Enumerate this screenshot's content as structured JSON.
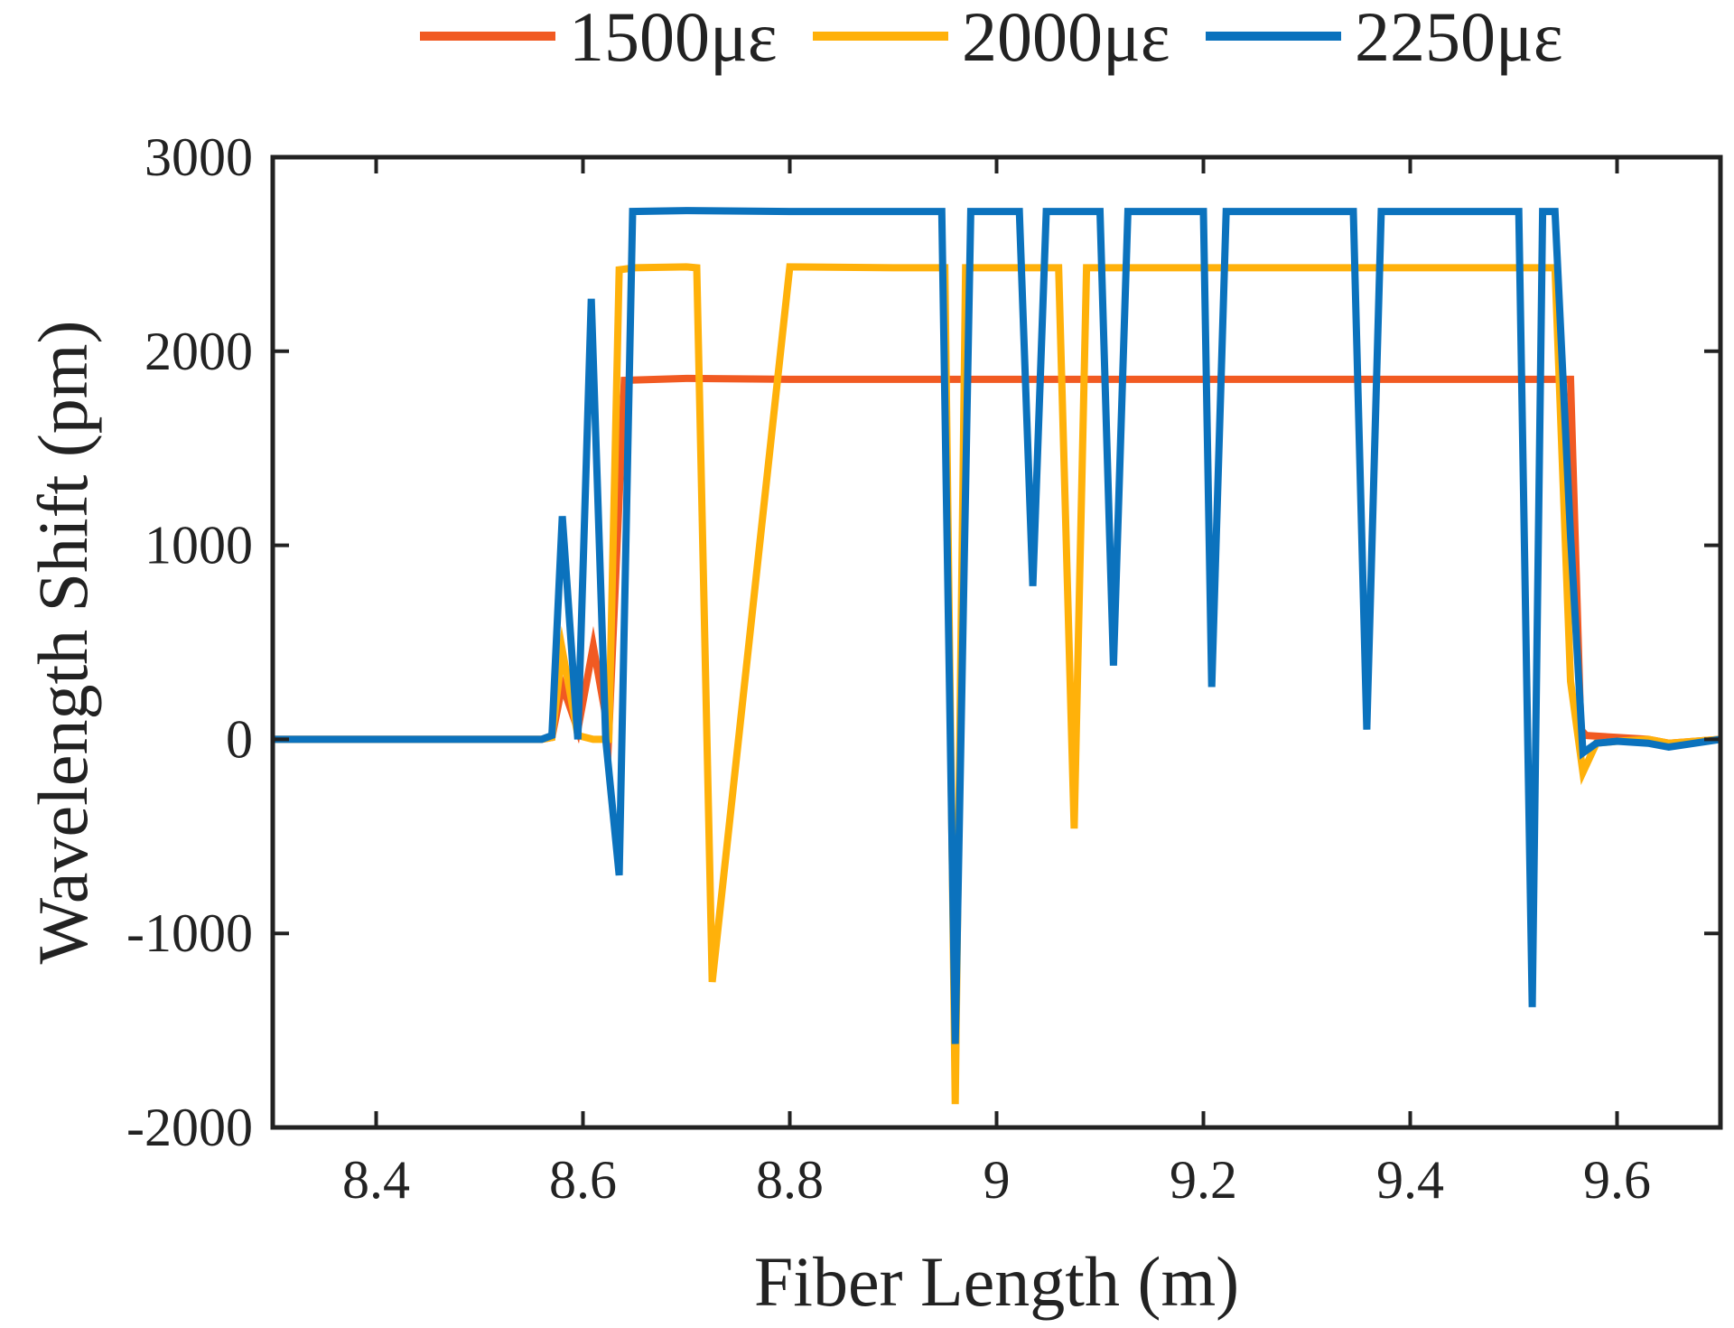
{
  "chart_data": {
    "type": "line",
    "title": "",
    "xlabel": "Fiber Length (m)",
    "ylabel": "Wavelength Shift (pm)",
    "xlim": [
      8.3,
      9.7
    ],
    "ylim": [
      -2000,
      3000
    ],
    "xticks": [
      8.4,
      8.6,
      8.8,
      9,
      9.2,
      9.4,
      9.6
    ],
    "xtick_labels": [
      "8.4",
      "8.6",
      "8.8",
      "9",
      "9.2",
      "9.4",
      "9.6"
    ],
    "yticks": [
      -2000,
      -1000,
      0,
      1000,
      2000,
      3000
    ],
    "ytick_labels": [
      "-2000",
      "-1000",
      "0",
      "1000",
      "2000",
      "3000"
    ],
    "grid": false,
    "legend_position": "top, outside plot, horizontal",
    "series": [
      {
        "name": "1500με",
        "color": "#F15A22",
        "x": [
          8.3,
          8.4,
          8.5,
          8.56,
          8.57,
          8.58,
          8.595,
          8.61,
          8.625,
          8.64,
          8.7,
          8.8,
          8.9,
          9.0,
          9.1,
          9.2,
          9.3,
          9.4,
          9.5,
          9.555,
          9.565,
          9.57,
          9.6,
          9.63,
          9.65,
          9.7
        ],
        "y": [
          0,
          0,
          0,
          0,
          10,
          280,
          50,
          480,
          30,
          1850,
          1860,
          1855,
          1855,
          1855,
          1855,
          1855,
          1855,
          1855,
          1855,
          1855,
          50,
          20,
          10,
          0,
          -20,
          0
        ]
      },
      {
        "name": "2000με",
        "color": "#FFB10A",
        "x": [
          8.3,
          8.4,
          8.5,
          8.56,
          8.57,
          8.58,
          8.595,
          8.61,
          8.625,
          8.635,
          8.65,
          8.7,
          8.71,
          8.725,
          8.8,
          8.9,
          8.95,
          8.96,
          8.97,
          9.0,
          9.06,
          9.075,
          9.087,
          9.1,
          9.2,
          9.3,
          9.4,
          9.5,
          9.54,
          9.555,
          9.567,
          9.58,
          9.6,
          9.63,
          9.65,
          9.7
        ],
        "y": [
          0,
          0,
          0,
          0,
          10,
          460,
          20,
          0,
          0,
          2420,
          2430,
          2435,
          2430,
          -1250,
          2435,
          2430,
          2430,
          -1880,
          2430,
          2430,
          2430,
          -460,
          2430,
          2430,
          2430,
          2430,
          2430,
          2430,
          2430,
          300,
          -170,
          -20,
          -10,
          0,
          -20,
          0
        ]
      },
      {
        "name": "2250με",
        "color": "#0B72BD",
        "x": [
          8.3,
          8.4,
          8.5,
          8.56,
          8.57,
          8.58,
          8.595,
          8.608,
          8.622,
          8.635,
          8.648,
          8.7,
          8.8,
          8.9,
          8.947,
          8.96,
          8.975,
          9.0,
          9.022,
          9.035,
          9.048,
          9.065,
          9.1,
          9.113,
          9.127,
          9.2,
          9.208,
          9.222,
          9.236,
          9.3,
          9.345,
          9.358,
          9.372,
          9.4,
          9.5,
          9.505,
          9.518,
          9.528,
          9.54,
          9.555,
          9.567,
          9.58,
          9.6,
          9.63,
          9.65,
          9.7
        ],
        "y": [
          0,
          0,
          0,
          0,
          20,
          1150,
          0,
          2270,
          0,
          -700,
          2720,
          2725,
          2720,
          2720,
          2720,
          -1570,
          2720,
          2720,
          2720,
          790,
          2720,
          2720,
          2720,
          380,
          2720,
          2720,
          270,
          2720,
          2720,
          2720,
          2720,
          50,
          2720,
          2720,
          2720,
          2720,
          -1380,
          2720,
          2720,
          1050,
          -70,
          -20,
          -10,
          -20,
          -40,
          0
        ]
      }
    ]
  }
}
